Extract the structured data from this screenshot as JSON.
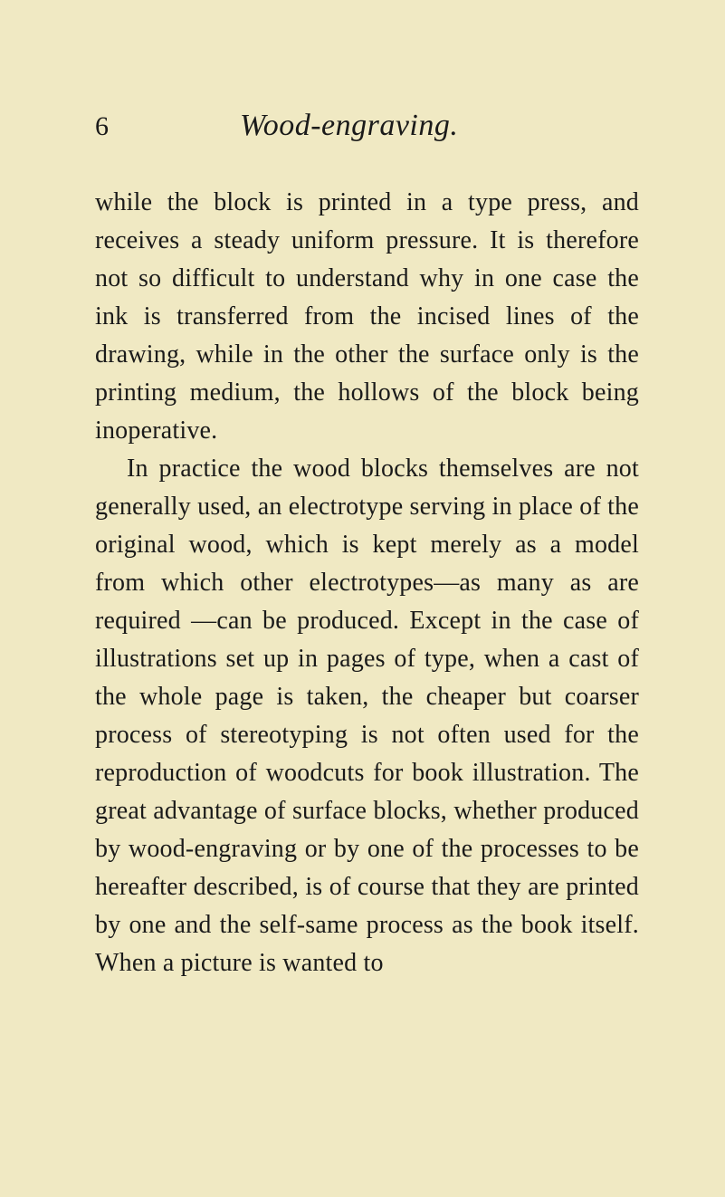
{
  "page": {
    "number": "6",
    "title": "Wood-engraving.",
    "paragraphs": [
      "while the block is printed in a type press, and receives a steady uniform pressure. It is therefore not so difficult to understand why in one case the ink is transferred from the incised lines of the drawing, while in the other the surface only is the printing medium, the hollows of the block being inoperative.",
      "In practice the wood blocks themselves are not generally used, an electrotype serving in place of the original wood, which is kept merely as a model from which other electrotypes—as many as are required —can be produced. Except in the case of illustrations set up in pages of type, when a cast of the whole page is taken, the cheaper but coarser process of stereo­typing is not often used for the repro­duction of woodcuts for book illustration. The great advantage of surface blocks, whether produced by wood-engraving or by one of the processes to be hereafter described, is of course that they are printed by one and the self-same process as the book itself. When a picture is wanted to"
    ]
  },
  "styles": {
    "background_color": "#f0e9c3",
    "text_color": "#1a1a1a",
    "page_number_fontsize": 30,
    "title_fontsize": 34,
    "body_fontsize": 28,
    "body_lineheight": 1.5
  }
}
